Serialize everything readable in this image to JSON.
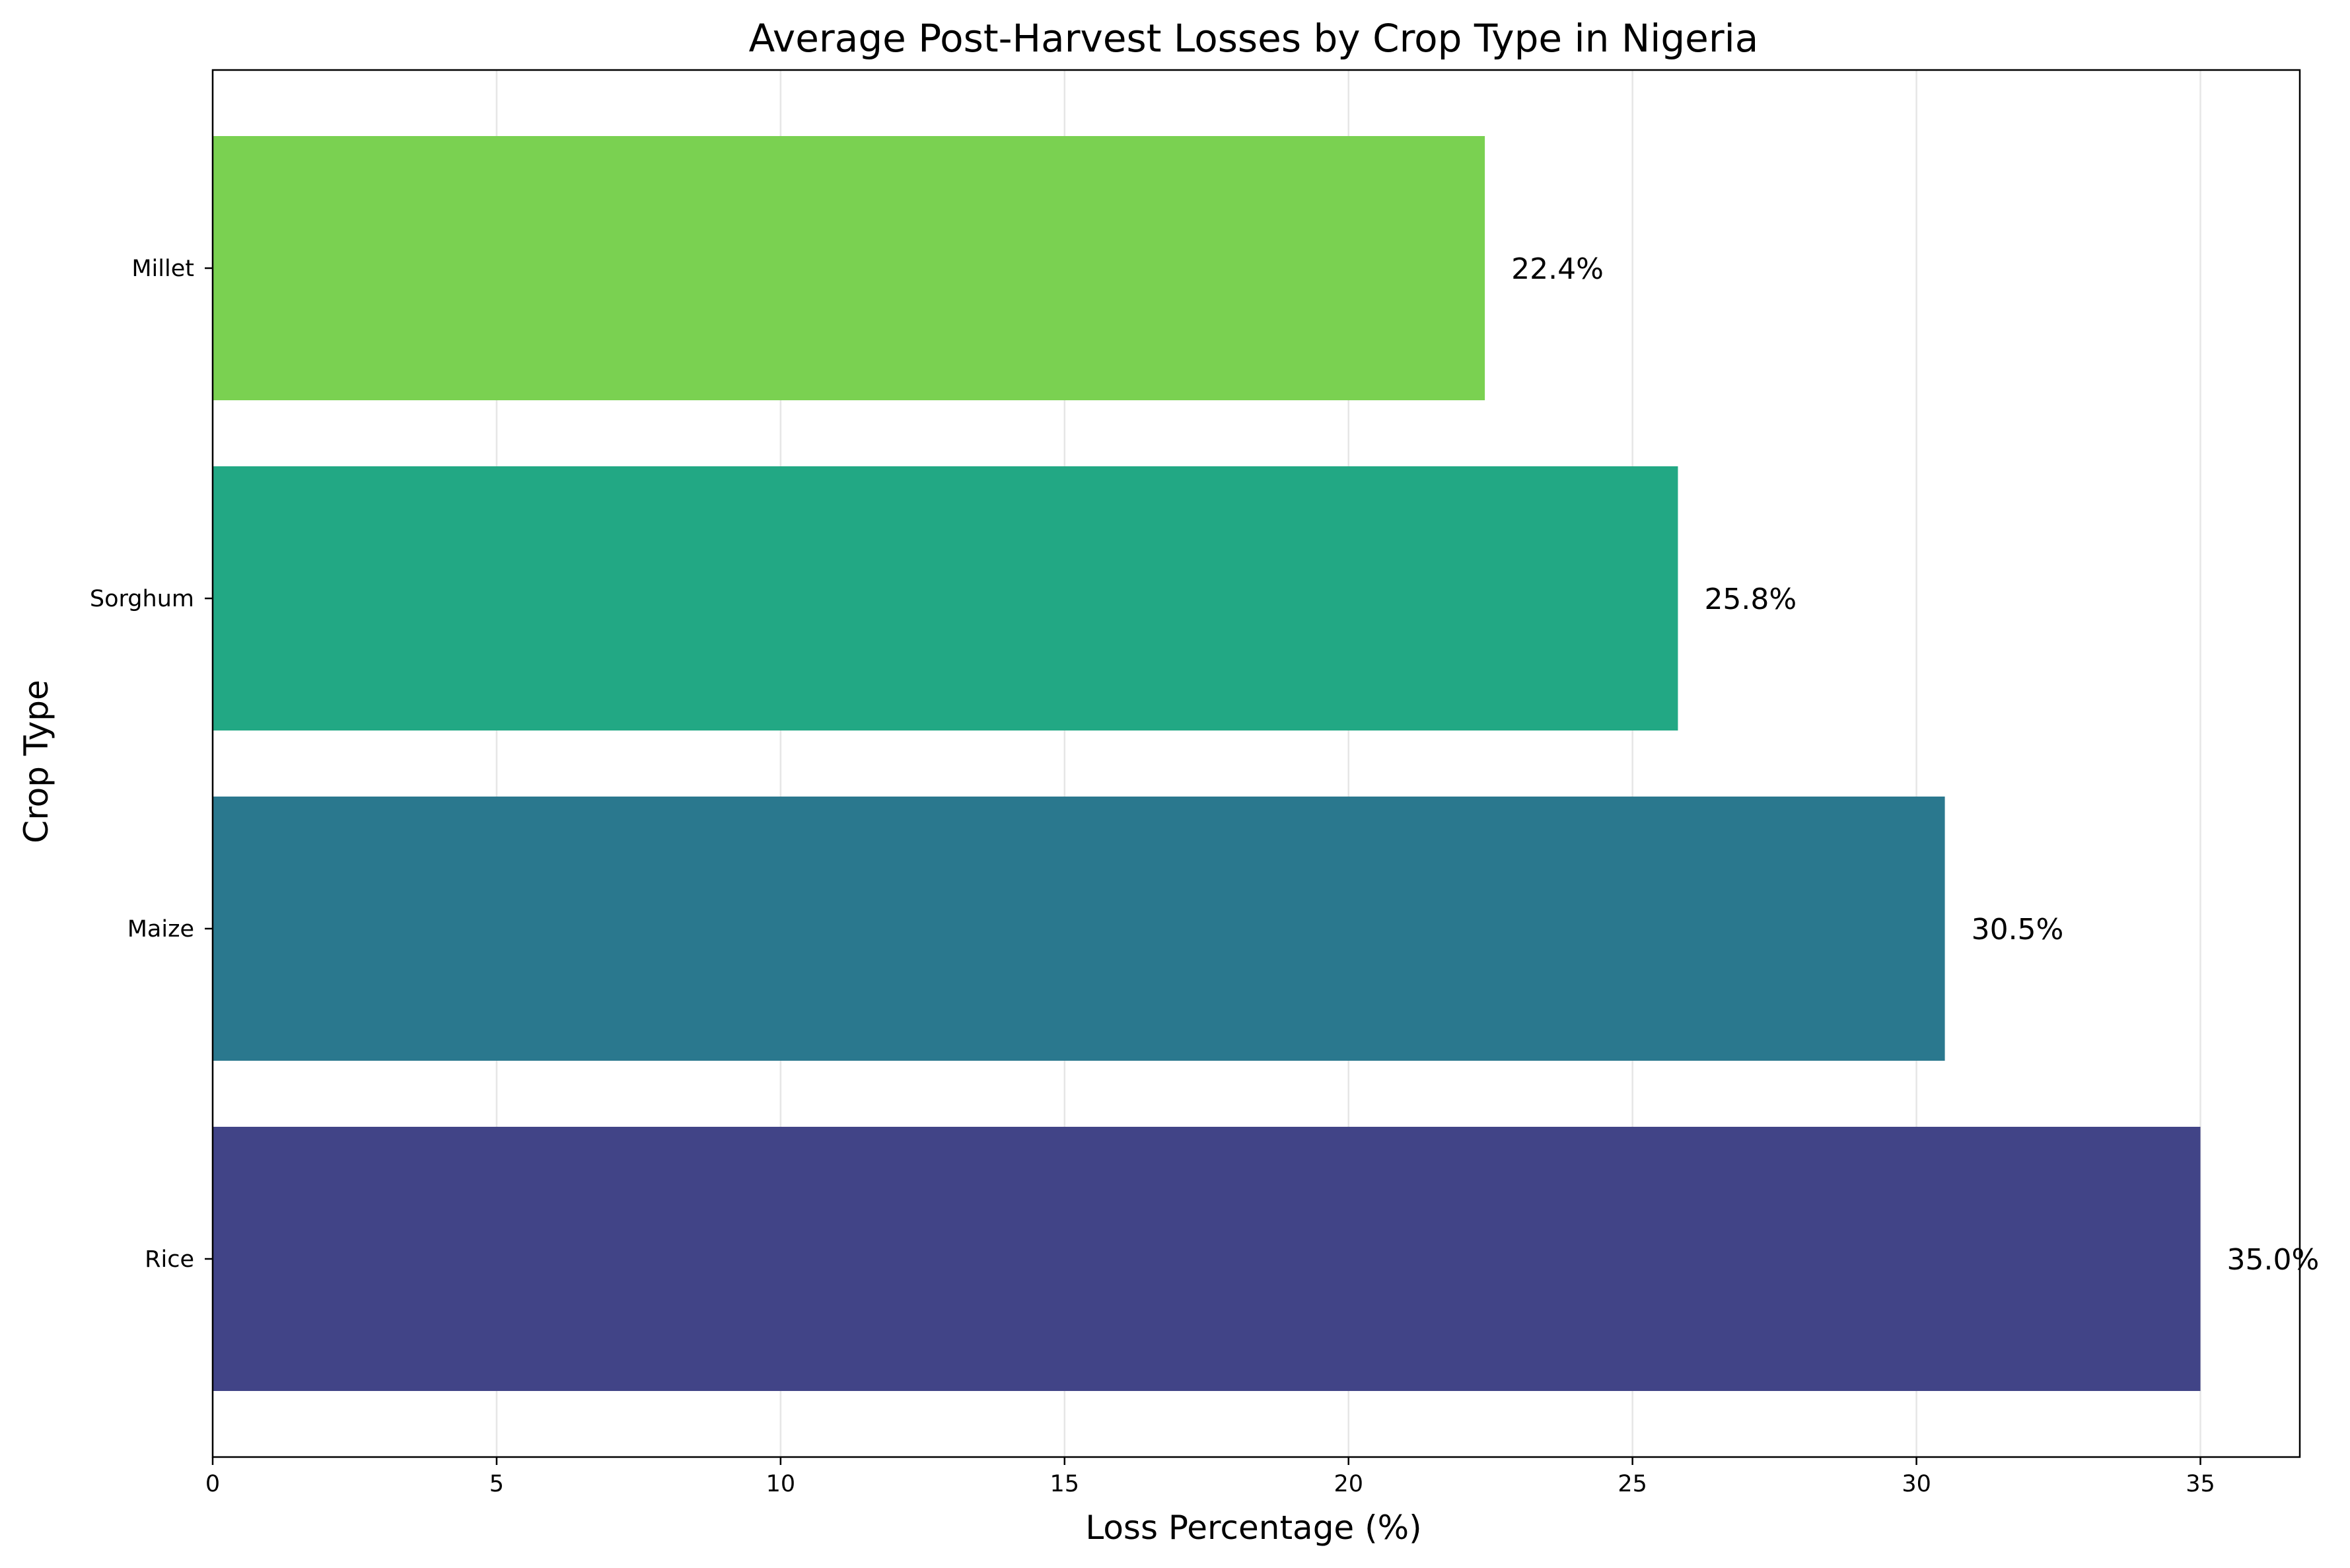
{
  "chart_data": {
    "type": "bar",
    "orientation": "horizontal",
    "title": "Average Post-Harvest Losses by Crop Type in Nigeria",
    "xlabel": "Loss Percentage (%)",
    "ylabel": "Crop Type",
    "categories": [
      "Rice",
      "Maize",
      "Sorghum",
      "Millet"
    ],
    "values": [
      35.0,
      30.5,
      25.8,
      22.4
    ],
    "value_labels": [
      "35.0%",
      "30.5%",
      "25.8%",
      "22.4%"
    ],
    "colors": [
      "#414487",
      "#2a788e",
      "#22a884",
      "#7ad151"
    ],
    "xlim": [
      0,
      36.75
    ],
    "xticks": [
      0,
      5,
      10,
      15,
      20,
      25,
      30,
      35
    ],
    "grid": "x",
    "grid_color": "#e6e6e6"
  }
}
